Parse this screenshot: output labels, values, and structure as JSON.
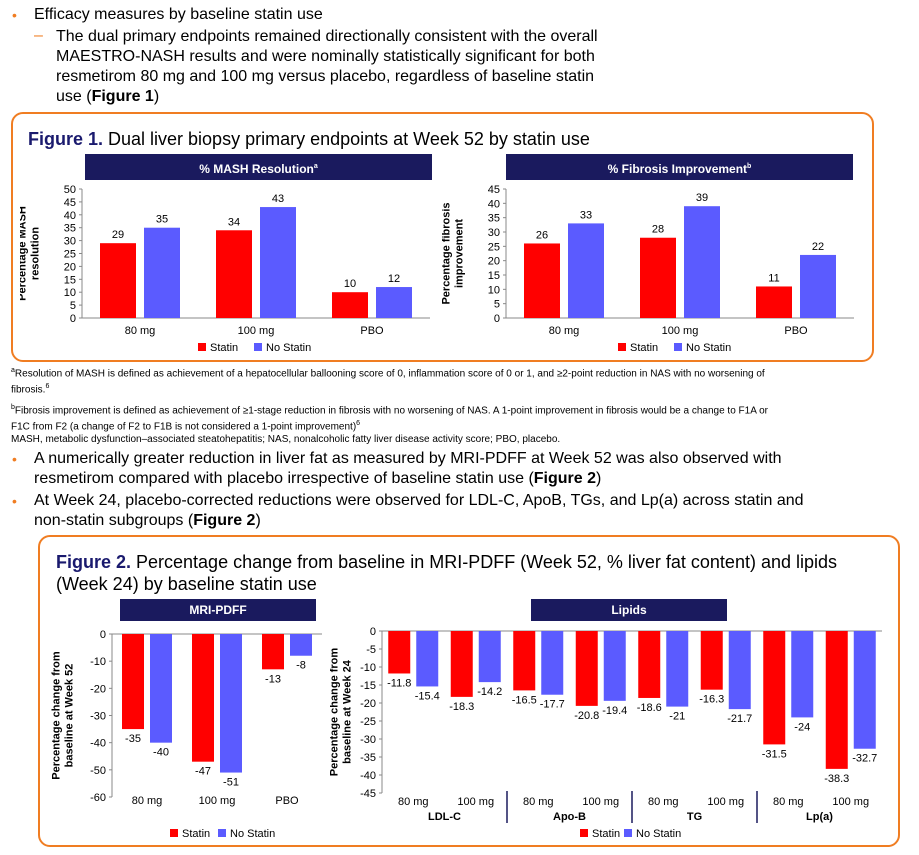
{
  "bullets_top": {
    "b1": "Efficacy measures by baseline statin use",
    "sub1_lines": [
      "The dual primary endpoints remained directionally consistent with the overall",
      "MAESTRO-NASH results and were nominally statistically significant for both",
      "resmetirom 80 mg and 100 mg versus placebo, regardless of baseline statin"
    ],
    "sub1_last_pre": "use (",
    "sub1_last_ref": "Figure 1",
    "sub1_last_post": ")"
  },
  "figure1": {
    "label": "Figure 1.",
    "title": " Dual liver biopsy primary endpoints at Week 52 by statin use",
    "panel_left_title": "% MASH Resolution",
    "panel_left_sup": "a",
    "panel_right_title": "% Fibrosis Improvement",
    "panel_right_sup": "b"
  },
  "footnotes": {
    "a_sup": "a",
    "a_line1": "Resolution of MASH is defined as achievement of a hepatocellular ballooning score of 0, inflammation score of 0 or 1, and ≥2-point reduction in NAS with no worsening of",
    "a_line2": "fibrosis.",
    "a_ref": "6",
    "b_sup": "b",
    "b_line1": "Fibrosis improvement is defined as achievement of ≥1-stage reduction in fibrosis with no worsening of NAS. A 1-point improvement in fibrosis would be a change to F1A or",
    "b_line2": "F1C from F2 (a change of F2 to F1B is not considered a 1-point improvement)",
    "b_ref": "6",
    "abbrev": "MASH, metabolic dysfunction–associated steatohepatitis; NAS, nonalcoholic fatty liver disease activity score; PBO, placebo."
  },
  "bullets_mid": {
    "b2_line1": "A numerically greater reduction in liver fat as measured by MRI-PDFF at Week 52 was also observed with",
    "b2_line2_pre": "resmetirom compared with placebo irrespective of baseline statin use (",
    "b2_ref": "Figure 2",
    "b2_post": ")",
    "b3_line1": "At Week 24, placebo-corrected reductions were observed for LDL-C, ApoB, TGs, and Lp(a) across statin and",
    "b3_line2_pre": "non-statin subgroups (",
    "b3_ref": "Figure 2",
    "b3_post": ")"
  },
  "figure2": {
    "label": "Figure 2.",
    "title_line1": " Percentage change from baseline in MRI-PDFF (Week 52, % liver fat content) and lipids",
    "title_line2": "(Week 24) by baseline statin use",
    "panel_left_title": "MRI-PDFF",
    "panel_right_title": "Lipids"
  },
  "colors": {
    "statin": "#ff0000",
    "no_statin": "#5b5bff",
    "accent": "#f07d22",
    "navy": "#1a1a5e"
  },
  "chart_data": [
    {
      "type": "bar",
      "ylabel": "Percentage MASH resolution",
      "ylim": [
        0,
        50
      ],
      "yticks": [
        0,
        5,
        10,
        15,
        20,
        25,
        30,
        35,
        40,
        45,
        50
      ],
      "categories": [
        "80 mg",
        "100 mg",
        "PBO"
      ],
      "series": [
        {
          "name": "Statin",
          "values": [
            29,
            34,
            10
          ]
        },
        {
          "name": "No Statin",
          "values": [
            35,
            43,
            12
          ]
        }
      ],
      "legend_placement": "bottom"
    },
    {
      "type": "bar",
      "ylabel": "Percentage fibrosis improvement",
      "ylim": [
        0,
        45
      ],
      "yticks": [
        0,
        5,
        10,
        15,
        20,
        25,
        30,
        35,
        40,
        45
      ],
      "categories": [
        "80 mg",
        "100 mg",
        "PBO"
      ],
      "series": [
        {
          "name": "Statin",
          "values": [
            26,
            28,
            11
          ]
        },
        {
          "name": "No Statin",
          "values": [
            33,
            39,
            22
          ]
        }
      ],
      "legend_placement": "bottom"
    },
    {
      "type": "bar",
      "ylabel": "Percentage change from baseline at Week 52",
      "ylim": [
        -60,
        0
      ],
      "yticks": [
        0,
        -10,
        -20,
        -30,
        -40,
        -50,
        -60
      ],
      "categories": [
        "80 mg",
        "100 mg",
        "PBO"
      ],
      "series": [
        {
          "name": "Statin",
          "values": [
            -35,
            -47,
            -13
          ]
        },
        {
          "name": "No Statin",
          "values": [
            -40,
            -51,
            -8
          ]
        }
      ],
      "legend_placement": "bottom"
    },
    {
      "type": "bar",
      "ylabel": "Percentage change from baseline at Week 24",
      "ylim": [
        -45,
        0
      ],
      "yticks": [
        0,
        -5,
        -10,
        -15,
        -20,
        -25,
        -30,
        -35,
        -40,
        -45
      ],
      "categories": [
        "80 mg",
        "100 mg",
        "80 mg",
        "100 mg",
        "80 mg",
        "100 mg",
        "80 mg",
        "100 mg"
      ],
      "groups": [
        "LDL-C",
        "Apo-B",
        "TG",
        "Lp(a)"
      ],
      "series": [
        {
          "name": "Statin",
          "values": [
            -11.8,
            -18.3,
            -16.5,
            -20.8,
            -18.6,
            -16.3,
            -31.5,
            -38.3
          ]
        },
        {
          "name": "No Statin",
          "values": [
            -15.4,
            -14.2,
            -17.7,
            -19.4,
            -21.0,
            -21.7,
            -24.0,
            -32.7
          ]
        }
      ],
      "legend_placement": "bottom"
    }
  ]
}
